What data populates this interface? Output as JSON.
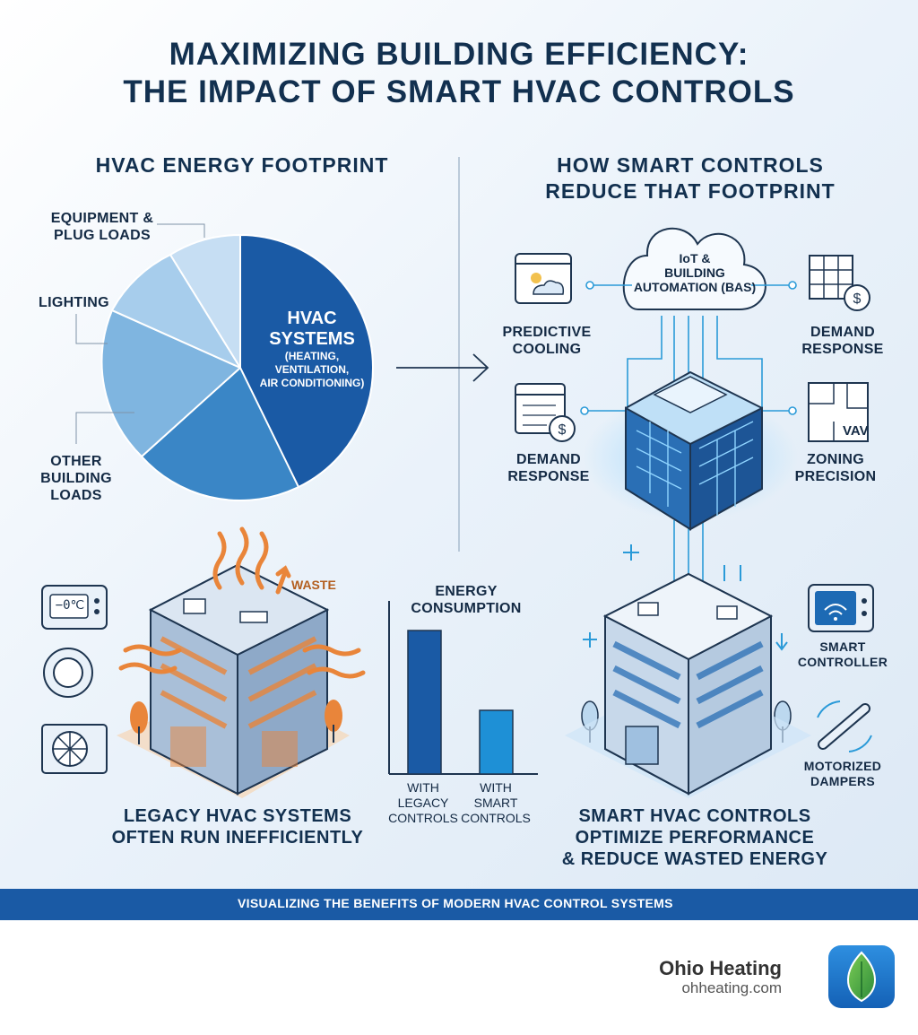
{
  "title_line1": "MAXIMIZING BUILDING EFFICIENCY:",
  "title_line2": "THE IMPACT OF SMART HVAC CONTROLS",
  "left_heading": "HVAC ENERGY FOOTPRINT",
  "right_heading_line1": "HOW SMART CONTROLS",
  "right_heading_line2": "REDUCE THAT FOOTPRINT",
  "pie": {
    "equipment_line1": "EQUIPMENT &",
    "equipment_line2": "PLUG LOADS",
    "lighting": "LIGHTING",
    "other_line1": "OTHER",
    "other_line2": "BUILDING",
    "other_line3": "LOADS",
    "hvac_line1": "HVAC",
    "hvac_line2": "SYSTEMS",
    "hvac_sub1": "(HEATING,",
    "hvac_sub2": "VENTILATION,",
    "hvac_sub3": "AIR CONDITIONING)"
  },
  "cloud_line1": "IoT &",
  "cloud_line2": "BUILDING",
  "cloud_line3": "AUTOMATION (BAS)",
  "features": {
    "predictive_line1": "PREDICTIVE",
    "predictive_line2": "COOLING",
    "demand_top_line1": "DEMAND",
    "demand_top_line2": "RESPONSE",
    "demand_left_line1": "DEMAND",
    "demand_left_line2": "RESPONSE",
    "zoning_line1": "ZONING",
    "zoning_line2": "PRECISION",
    "vav": "VAV"
  },
  "legacy": {
    "waste": "WASTE",
    "thermostat_display": "−0℃",
    "caption_line1": "LEGACY HVAC SYSTEMS",
    "caption_line2": "OFTEN RUN INEFFICIENTLY"
  },
  "bar_chart": {
    "title_line1": "ENERGY",
    "title_line2": "CONSUMPTION",
    "bar1_line1": "WITH",
    "bar1_line2": "LEGACY",
    "bar1_line3": "CONTROLS",
    "bar2_line1": "WITH",
    "bar2_line2": "SMART",
    "bar2_line3": "CONTROLS",
    "colors": [
      "#1a5aa5",
      "#1e90d6"
    ]
  },
  "smart": {
    "controller_line1": "SMART",
    "controller_line2": "CONTROLLER",
    "dampers_line1": "MOTORIZED",
    "dampers_line2": "DAMPERS",
    "caption_line1": "SMART HVAC CONTROLS",
    "caption_line2": "OPTIMIZE PERFORMANCE",
    "caption_line3": "& REDUCE WASTED ENERGY"
  },
  "banner": "VISUALIZING THE BENEFITS OF MODERN HVAC CONTROL SYSTEMS",
  "brand": {
    "name": "Ohio Heating",
    "url": "ohheating.com"
  },
  "colors": {
    "navy": "#12304f",
    "blue": "#1a5aa5",
    "accent": "#1e90d6",
    "orange": "#e9853a"
  }
}
